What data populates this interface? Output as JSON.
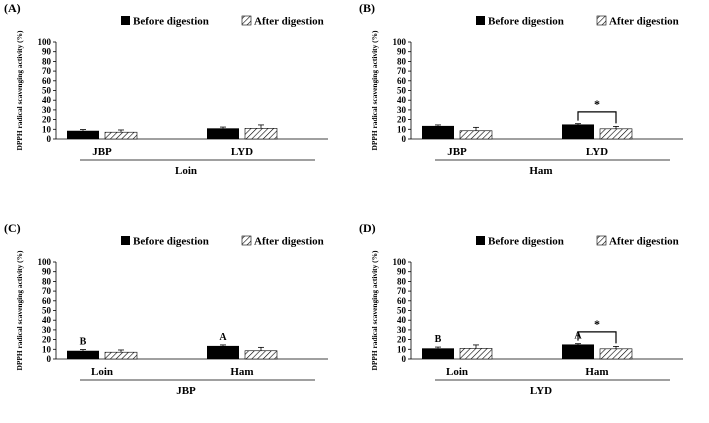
{
  "legend": {
    "before": "Before digestion",
    "after": "After digestion"
  },
  "chart_data": [
    {
      "type": "bar",
      "panel_label": "(A)",
      "ylabel": "DPPH radical scavenging activity (%)",
      "ylim": [
        0,
        100
      ],
      "yticks": [
        0,
        10,
        20,
        30,
        40,
        50,
        60,
        70,
        80,
        90,
        100
      ],
      "categories": [
        "JBP",
        "LYD"
      ],
      "group_label": "Loin",
      "series": [
        {
          "name": "Before digestion",
          "values": [
            8.5,
            11
          ],
          "errors": [
            1.2,
            1.3
          ]
        },
        {
          "name": "After digestion",
          "values": [
            7,
            11
          ],
          "errors": [
            2.3,
            3.5
          ]
        }
      ],
      "letters": [
        "",
        ""
      ],
      "significance": null
    },
    {
      "type": "bar",
      "panel_label": "(B)",
      "ylabel": "DPPH radical scavenging activity (%)",
      "ylim": [
        0,
        100
      ],
      "yticks": [
        0,
        10,
        20,
        30,
        40,
        50,
        60,
        70,
        80,
        90,
        100
      ],
      "categories": [
        "JBP",
        "LYD"
      ],
      "group_label": "Ham",
      "series": [
        {
          "name": "Before digestion",
          "values": [
            13.5,
            15
          ],
          "errors": [
            1.0,
            0.8
          ]
        },
        {
          "name": "After digestion",
          "values": [
            8.5,
            10.5
          ],
          "errors": [
            3.5,
            2.5
          ]
        }
      ],
      "letters": [
        "",
        ""
      ],
      "significance": {
        "category": 1,
        "mark": "*"
      }
    },
    {
      "type": "bar",
      "panel_label": "(C)",
      "ylabel": "DPPH radical scavenging activity (%)",
      "ylim": [
        0,
        100
      ],
      "yticks": [
        0,
        10,
        20,
        30,
        40,
        50,
        60,
        70,
        80,
        90,
        100
      ],
      "categories": [
        "Loin",
        "Ham"
      ],
      "group_label": "JBP",
      "series": [
        {
          "name": "Before digestion",
          "values": [
            8.5,
            13.5
          ],
          "errors": [
            1.2,
            1.0
          ]
        },
        {
          "name": "After digestion",
          "values": [
            7,
            8.5
          ],
          "errors": [
            2.3,
            3.5
          ]
        }
      ],
      "letters": [
        "B",
        "A"
      ],
      "significance": null
    },
    {
      "type": "bar",
      "panel_label": "(D)",
      "ylabel": "DPPH radical scavenging activity (%)",
      "ylim": [
        0,
        100
      ],
      "yticks": [
        0,
        10,
        20,
        30,
        40,
        50,
        60,
        70,
        80,
        90,
        100
      ],
      "categories": [
        "Loin",
        "Ham"
      ],
      "group_label": "LYD",
      "series": [
        {
          "name": "Before digestion",
          "values": [
            11,
            15
          ],
          "errors": [
            1.3,
            0.8
          ]
        },
        {
          "name": "After digestion",
          "values": [
            11,
            10.5
          ],
          "errors": [
            3.5,
            2.5
          ]
        }
      ],
      "letters": [
        "B",
        "A"
      ],
      "significance": {
        "category": 1,
        "mark": "*"
      }
    }
  ]
}
